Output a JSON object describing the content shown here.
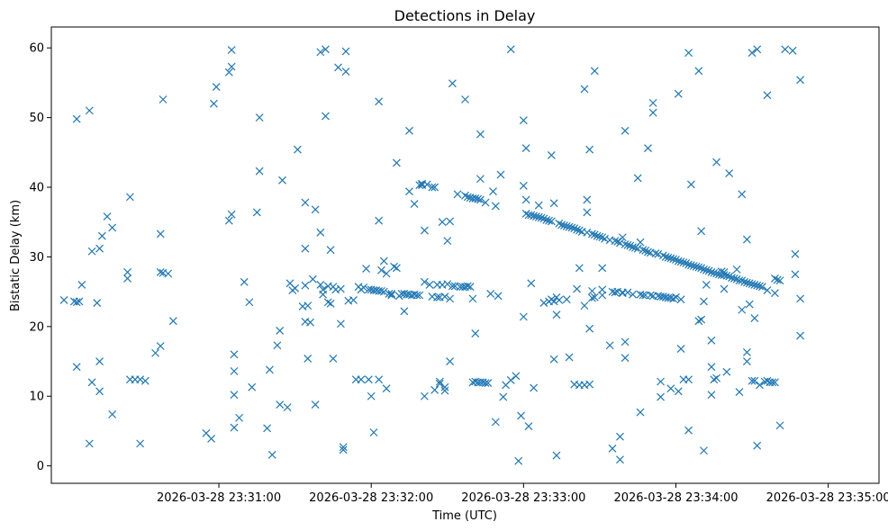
{
  "chart_data": {
    "type": "scatter",
    "title": "Detections in Delay",
    "xlabel": "Time (UTC)",
    "ylabel": "Bistatic Delay (km)",
    "xlim_seconds": [
      -66,
      260
    ],
    "ylim": [
      -2.5,
      63
    ],
    "x_tick_seconds": [
      0,
      60,
      120,
      180,
      240
    ],
    "x_tick_labels": [
      "2026-03-28 23:31:00",
      "2026-03-28 23:32:00",
      "2026-03-28 23:33:00",
      "2026-03-28 23:34:00",
      "2026-03-28 23:35:00"
    ],
    "y_ticks": [
      0,
      10,
      20,
      30,
      40,
      50,
      60
    ],
    "y_tick_labels": [
      "0",
      "10",
      "20",
      "30",
      "40",
      "50",
      "60"
    ],
    "x_time_origin": "2026-03-28 23:31:00",
    "marker": "x",
    "color": "#1f77b4",
    "scatter_points": [
      [
        -61,
        23.8
      ],
      [
        -57,
        23.6
      ],
      [
        -56,
        23.5
      ],
      [
        -55,
        23.6
      ],
      [
        -54,
        26.0
      ],
      [
        -56,
        49.8
      ],
      [
        -56,
        14.2
      ],
      [
        -51,
        51.0
      ],
      [
        -51,
        3.2
      ],
      [
        -50,
        30.8
      ],
      [
        -50,
        12.0
      ],
      [
        -48,
        23.4
      ],
      [
        -47,
        31.2
      ],
      [
        -47,
        15.0
      ],
      [
        -47,
        10.7
      ],
      [
        -46,
        33.0
      ],
      [
        -44,
        35.8
      ],
      [
        -42,
        34.2
      ],
      [
        -42,
        7.4
      ],
      [
        -36,
        26.9
      ],
      [
        -36,
        27.8
      ],
      [
        -35,
        38.6
      ],
      [
        -35,
        12.4
      ],
      [
        -33,
        12.4
      ],
      [
        -31,
        12.4
      ],
      [
        -31,
        3.2
      ],
      [
        -29,
        12.2
      ],
      [
        -25,
        16.2
      ],
      [
        -23,
        17.2
      ],
      [
        -23,
        33.3
      ],
      [
        -23,
        27.8
      ],
      [
        -22,
        27.7
      ],
      [
        -22,
        52.6
      ],
      [
        -20,
        27.6
      ],
      [
        -18,
        20.8
      ],
      [
        -5,
        4.7
      ],
      [
        -3,
        3.9
      ],
      [
        -2,
        52.0
      ],
      [
        -1,
        54.4
      ],
      [
        4,
        56.5
      ],
      [
        4,
        35.2
      ],
      [
        5,
        57.3
      ],
      [
        5,
        36.1
      ],
      [
        5,
        59.7
      ],
      [
        6,
        10.2
      ],
      [
        6,
        13.6
      ],
      [
        6,
        16.0
      ],
      [
        6,
        5.5
      ],
      [
        8,
        6.9
      ],
      [
        10,
        26.4
      ],
      [
        12,
        23.5
      ],
      [
        13,
        11.3
      ],
      [
        15,
        36.4
      ],
      [
        16,
        50.0
      ],
      [
        16,
        42.3
      ],
      [
        19,
        5.4
      ],
      [
        20,
        13.8
      ],
      [
        21,
        1.6
      ],
      [
        23,
        17.3
      ],
      [
        24,
        8.8
      ],
      [
        24,
        19.4
      ],
      [
        25,
        41.0
      ],
      [
        27,
        8.4
      ],
      [
        28,
        26.2
      ],
      [
        29,
        25.2
      ],
      [
        30,
        25.5
      ],
      [
        31,
        45.4
      ],
      [
        33,
        22.9
      ],
      [
        34,
        37.8
      ],
      [
        34,
        31.2
      ],
      [
        34,
        25.9
      ],
      [
        34,
        20.7
      ],
      [
        35,
        15.4
      ],
      [
        35,
        23.0
      ],
      [
        36,
        20.6
      ],
      [
        37,
        26.8
      ],
      [
        38,
        36.8
      ],
      [
        38,
        8.8
      ],
      [
        40,
        26.0
      ],
      [
        40,
        59.4
      ],
      [
        40,
        33.5
      ],
      [
        41,
        25.3
      ],
      [
        41,
        24.6
      ],
      [
        42,
        50.2
      ],
      [
        42,
        59.8
      ],
      [
        43,
        25.8
      ],
      [
        43,
        23.5
      ],
      [
        44,
        31.0
      ],
      [
        44,
        23.3
      ],
      [
        45,
        25.7
      ],
      [
        45,
        15.4
      ],
      [
        46,
        25.3
      ],
      [
        47,
        57.2
      ],
      [
        48,
        20.4
      ],
      [
        48,
        25.4
      ],
      [
        49,
        2.3
      ],
      [
        49,
        2.7
      ],
      [
        50,
        56.6
      ],
      [
        50,
        59.5
      ],
      [
        51,
        23.7
      ],
      [
        53,
        23.8
      ],
      [
        54,
        12.4
      ],
      [
        55,
        25.7
      ],
      [
        56,
        25.3
      ],
      [
        56,
        12.4
      ],
      [
        57,
        25.6
      ],
      [
        58,
        28.3
      ],
      [
        59,
        25.3
      ],
      [
        59,
        12.4
      ],
      [
        60,
        10.0
      ],
      [
        60,
        25.3
      ],
      [
        61,
        25.2
      ],
      [
        61,
        4.8
      ],
      [
        62,
        25.2
      ],
      [
        63,
        25.1
      ],
      [
        63,
        52.3
      ],
      [
        63,
        35.2
      ],
      [
        63,
        12.4
      ],
      [
        64,
        25.1
      ],
      [
        64,
        28.1
      ],
      [
        65,
        25.0
      ],
      [
        65,
        29.4
      ],
      [
        66,
        11.1
      ],
      [
        66,
        27.6
      ],
      [
        67,
        24.7
      ],
      [
        68,
        24.5
      ],
      [
        68,
        24.7
      ],
      [
        69,
        28.6
      ],
      [
        70,
        28.4
      ],
      [
        70,
        43.5
      ],
      [
        71,
        24.4
      ],
      [
        72,
        24.7
      ],
      [
        73,
        24.7
      ],
      [
        73,
        22.2
      ],
      [
        74,
        24.6
      ],
      [
        75,
        24.6
      ],
      [
        75,
        39.4
      ],
      [
        75,
        48.1
      ],
      [
        76,
        24.5
      ],
      [
        77,
        37.6
      ],
      [
        77,
        24.6
      ],
      [
        78,
        24.5
      ],
      [
        79,
        24.5
      ],
      [
        79,
        40.3
      ],
      [
        80,
        40.5
      ],
      [
        80,
        40.3
      ],
      [
        81,
        10.0
      ],
      [
        81,
        33.8
      ],
      [
        81,
        26.4
      ],
      [
        82,
        40.4
      ],
      [
        83,
        26.0
      ],
      [
        84,
        40.0
      ],
      [
        84,
        24.3
      ],
      [
        85,
        40.0
      ],
      [
        85,
        10.9
      ],
      [
        86,
        26.0
      ],
      [
        86,
        24.2
      ],
      [
        87,
        11.8
      ],
      [
        87,
        12.1
      ],
      [
        87,
        24.2
      ],
      [
        88,
        35.0
      ],
      [
        88,
        26.0
      ],
      [
        89,
        24.3
      ],
      [
        89,
        11.3
      ],
      [
        89,
        10.8
      ],
      [
        90,
        26.1
      ],
      [
        90,
        32.3
      ],
      [
        91,
        15.0
      ],
      [
        91,
        35.1
      ],
      [
        91,
        24.0
      ],
      [
        92,
        54.9
      ],
      [
        92,
        25.8
      ],
      [
        93,
        25.8
      ],
      [
        94,
        39.0
      ],
      [
        95,
        25.7
      ],
      [
        96,
        25.7
      ],
      [
        97,
        25.7
      ],
      [
        97,
        38.8
      ],
      [
        97,
        52.6
      ],
      [
        98,
        38.6
      ],
      [
        98,
        25.8
      ],
      [
        99,
        38.5
      ],
      [
        99,
        25.7
      ],
      [
        100,
        38.4
      ],
      [
        100,
        12.0
      ],
      [
        100,
        24.0
      ],
      [
        101,
        38.4
      ],
      [
        101,
        12.1
      ],
      [
        101,
        19.0
      ],
      [
        102,
        38.3
      ],
      [
        102,
        12.0
      ],
      [
        103,
        38.2
      ],
      [
        103,
        12.0
      ],
      [
        103,
        47.6
      ],
      [
        103,
        41.2
      ],
      [
        104,
        12.0
      ],
      [
        105,
        11.9
      ],
      [
        105,
        37.8
      ],
      [
        106,
        11.9
      ],
      [
        107,
        24.7
      ],
      [
        108,
        39.4
      ],
      [
        109,
        6.3
      ],
      [
        109,
        37.3
      ],
      [
        110,
        24.4
      ],
      [
        111,
        41.8
      ],
      [
        112,
        9.9
      ],
      [
        113,
        11.6
      ],
      [
        115,
        59.8
      ],
      [
        115,
        12.3
      ],
      [
        117,
        12.9
      ],
      [
        118,
        0.7
      ],
      [
        119,
        7.2
      ],
      [
        120,
        21.4
      ],
      [
        120,
        40.2
      ],
      [
        120,
        49.6
      ],
      [
        121,
        45.6
      ],
      [
        121,
        36.2
      ],
      [
        121,
        38.2
      ],
      [
        122,
        36.0
      ],
      [
        122,
        5.7
      ],
      [
        123,
        36.0
      ],
      [
        123,
        26.2
      ],
      [
        124,
        35.9
      ],
      [
        124,
        11.2
      ],
      [
        125,
        35.8
      ],
      [
        126,
        35.7
      ],
      [
        126,
        37.4
      ],
      [
        127,
        35.6
      ],
      [
        128,
        35.5
      ],
      [
        128,
        23.4
      ],
      [
        129,
        35.3
      ],
      [
        130,
        35.2
      ],
      [
        130,
        23.6
      ],
      [
        131,
        35.1
      ],
      [
        131,
        23.9
      ],
      [
        131,
        44.6
      ],
      [
        132,
        15.3
      ],
      [
        132,
        23.6
      ],
      [
        132,
        37.7
      ],
      [
        133,
        21.7
      ],
      [
        133,
        24.2
      ],
      [
        133,
        1.5
      ],
      [
        134,
        34.8
      ],
      [
        134,
        23.8
      ],
      [
        135,
        34.6
      ],
      [
        136,
        34.5
      ],
      [
        137,
        34.4
      ],
      [
        137,
        23.9
      ],
      [
        138,
        34.3
      ],
      [
        138,
        15.6
      ],
      [
        139,
        34.2
      ],
      [
        140,
        11.7
      ],
      [
        140,
        34.1
      ],
      [
        141,
        25.4
      ],
      [
        141,
        33.9
      ],
      [
        142,
        11.6
      ],
      [
        142,
        28.4
      ],
      [
        142,
        33.8
      ],
      [
        143,
        33.6
      ],
      [
        144,
        54.1
      ],
      [
        144,
        11.6
      ],
      [
        144,
        23.0
      ],
      [
        145,
        33.5
      ],
      [
        145,
        36.4
      ],
      [
        145,
        38.2
      ],
      [
        146,
        11.7
      ],
      [
        146,
        45.4
      ],
      [
        146,
        19.7
      ],
      [
        147,
        33.3
      ],
      [
        147,
        24.1
      ],
      [
        147,
        25.1
      ],
      [
        148,
        33.2
      ],
      [
        148,
        24.2
      ],
      [
        148,
        56.7
      ],
      [
        149,
        33.0
      ],
      [
        150,
        32.9
      ],
      [
        151,
        32.8
      ],
      [
        151,
        28.4
      ],
      [
        151,
        24.5
      ],
      [
        151,
        25.3
      ],
      [
        152,
        32.6
      ],
      [
        154,
        17.3
      ],
      [
        154,
        32.4
      ],
      [
        155,
        25.0
      ],
      [
        155,
        2.5
      ],
      [
        156,
        32.3
      ],
      [
        156,
        24.9
      ],
      [
        157,
        32.2
      ],
      [
        157,
        25.0
      ],
      [
        158,
        32.0
      ],
      [
        158,
        0.9
      ],
      [
        158,
        4.2
      ],
      [
        159,
        32.8
      ],
      [
        159,
        24.8
      ],
      [
        159,
        24.9
      ],
      [
        160,
        31.8
      ],
      [
        160,
        17.8
      ],
      [
        160,
        15.5
      ],
      [
        160,
        48.1
      ],
      [
        161,
        24.9
      ],
      [
        161,
        31.7
      ],
      [
        162,
        31.6
      ],
      [
        163,
        31.4
      ],
      [
        163,
        24.6
      ],
      [
        164,
        31.3
      ],
      [
        165,
        31.2
      ],
      [
        165,
        41.3
      ],
      [
        166,
        32.1
      ],
      [
        166,
        7.7
      ],
      [
        166,
        24.6
      ],
      [
        167,
        31.0
      ],
      [
        167,
        24.5
      ],
      [
        168,
        24.5
      ],
      [
        168,
        30.9
      ],
      [
        169,
        30.7
      ],
      [
        169,
        45.6
      ],
      [
        170,
        24.5
      ],
      [
        170,
        30.6
      ],
      [
        171,
        24.4
      ],
      [
        171,
        50.7
      ],
      [
        171,
        52.1
      ],
      [
        172,
        30.5
      ],
      [
        173,
        24.4
      ],
      [
        173,
        30.4
      ],
      [
        174,
        24.3
      ],
      [
        174,
        9.9
      ],
      [
        174,
        12.1
      ],
      [
        175,
        30.2
      ],
      [
        175,
        24.3
      ],
      [
        176,
        30.0
      ],
      [
        176,
        24.2
      ],
      [
        177,
        24.1
      ],
      [
        177,
        29.9
      ],
      [
        178,
        29.8
      ],
      [
        178,
        11.1
      ],
      [
        178,
        24.1
      ],
      [
        179,
        29.7
      ],
      [
        179,
        24.0
      ],
      [
        180,
        29.6
      ],
      [
        180,
        24.2
      ],
      [
        181,
        29.4
      ],
      [
        181,
        53.4
      ],
      [
        181,
        10.7
      ],
      [
        182,
        29.3
      ],
      [
        182,
        16.8
      ],
      [
        182,
        23.9
      ],
      [
        183,
        29.2
      ],
      [
        183,
        12.4
      ],
      [
        184,
        29.1
      ],
      [
        185,
        28.9
      ],
      [
        185,
        12.4
      ],
      [
        185,
        5.1
      ],
      [
        185,
        59.3
      ],
      [
        186,
        28.8
      ],
      [
        186,
        40.4
      ],
      [
        187,
        28.7
      ],
      [
        188,
        28.6
      ],
      [
        189,
        28.5
      ],
      [
        189,
        56.7
      ],
      [
        189,
        20.8
      ],
      [
        190,
        28.4
      ],
      [
        190,
        21.0
      ],
      [
        190,
        33.7
      ],
      [
        191,
        28.2
      ],
      [
        191,
        23.6
      ],
      [
        191,
        2.2
      ],
      [
        192,
        28.1
      ],
      [
        192,
        26.0
      ],
      [
        193,
        28.0
      ],
      [
        194,
        27.8
      ],
      [
        194,
        14.2
      ],
      [
        194,
        10.2
      ],
      [
        194,
        18.0
      ],
      [
        195,
        27.7
      ],
      [
        195,
        12.4
      ],
      [
        196,
        27.6
      ],
      [
        196,
        43.6
      ],
      [
        196,
        12.6
      ],
      [
        197,
        27.5
      ],
      [
        198,
        27.4
      ],
      [
        198,
        27.9
      ],
      [
        199,
        27.4
      ],
      [
        199,
        27.8
      ],
      [
        199,
        25.4
      ],
      [
        200,
        27.3
      ],
      [
        200,
        13.5
      ],
      [
        201,
        27.2
      ],
      [
        201,
        42.0
      ],
      [
        202,
        27.0
      ],
      [
        203,
        26.9
      ],
      [
        204,
        26.8
      ],
      [
        204,
        28.2
      ],
      [
        205,
        26.6
      ],
      [
        205,
        10.6
      ],
      [
        206,
        26.6
      ],
      [
        206,
        39.0
      ],
      [
        206,
        22.4
      ],
      [
        207,
        26.4
      ],
      [
        208,
        26.3
      ],
      [
        208,
        16.3
      ],
      [
        208,
        15.0
      ],
      [
        208,
        32.5
      ],
      [
        209,
        26.2
      ],
      [
        209,
        23.2
      ],
      [
        210,
        26.1
      ],
      [
        210,
        59.3
      ],
      [
        210,
        12.2
      ],
      [
        211,
        26.0
      ],
      [
        211,
        12.2
      ],
      [
        211,
        21.2
      ],
      [
        212,
        25.9
      ],
      [
        212,
        2.9
      ],
      [
        212,
        59.8
      ],
      [
        213,
        25.8
      ],
      [
        213,
        11.6
      ],
      [
        214,
        25.7
      ],
      [
        215,
        12.1
      ],
      [
        216,
        25.2
      ],
      [
        216,
        53.2
      ],
      [
        216,
        12.2
      ],
      [
        217,
        12.0
      ],
      [
        218,
        12.0
      ],
      [
        219,
        12.0
      ],
      [
        219,
        26.9
      ],
      [
        219,
        24.8
      ],
      [
        220,
        26.7
      ],
      [
        221,
        26.6
      ],
      [
        221,
        5.8
      ],
      [
        223,
        59.8
      ],
      [
        226,
        59.6
      ],
      [
        227,
        30.4
      ],
      [
        227,
        27.5
      ],
      [
        229,
        24.0
      ],
      [
        229,
        55.4
      ],
      [
        229,
        18.7
      ]
    ]
  }
}
